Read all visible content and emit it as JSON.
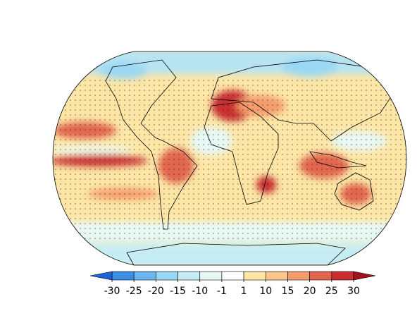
{
  "colorbar": {
    "ticks": [
      -30,
      -25,
      -20,
      -15,
      -10,
      -1,
      1,
      10,
      15,
      20,
      25,
      30
    ],
    "colors": [
      "#1f63d6",
      "#3c8de4",
      "#6ab6ef",
      "#99d8f4",
      "#c6edf4",
      "#e7f8f4",
      "#ffffff",
      "#fde6a6",
      "#fcc68a",
      "#f59c6c",
      "#e2664e",
      "#c92f30",
      "#a3121d"
    ],
    "extend": "both"
  }
}
